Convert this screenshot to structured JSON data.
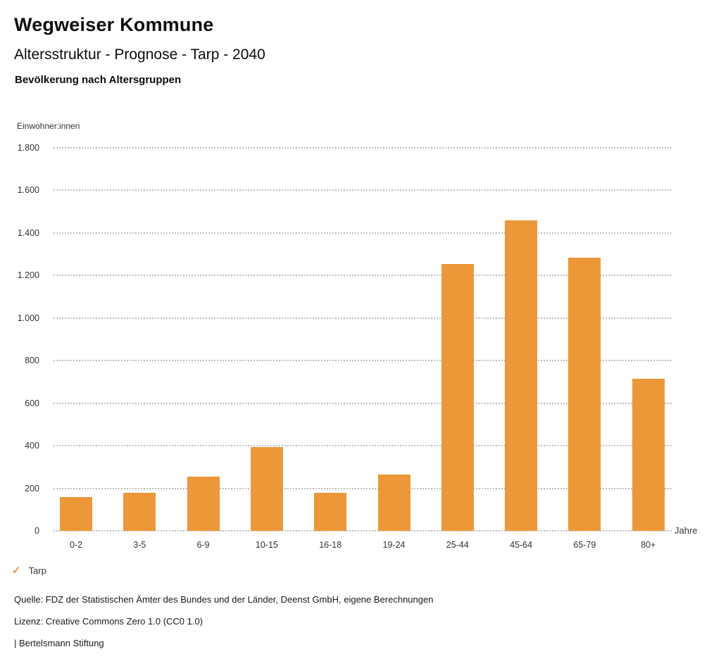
{
  "header": {
    "title": "Wegweiser Kommune",
    "subtitle": "Altersstruktur - Prognose - Tarp - 2040",
    "chart_heading": "Bevölkerung nach Altersgruppen"
  },
  "chart_data": {
    "type": "bar",
    "title": "Bevölkerung nach Altersgruppen",
    "categories": [
      "0-2",
      "3-5",
      "6-9",
      "10-15",
      "16-18",
      "19-24",
      "25-44",
      "45-64",
      "65-79",
      "80+"
    ],
    "series": [
      {
        "name": "Tarp",
        "values": [
          160,
          180,
          255,
          395,
          180,
          265,
          1255,
          1460,
          1285,
          715
        ]
      }
    ],
    "xlabel": "Jahre",
    "ylabel": "Einwohner:innen",
    "ylim": [
      0,
      1800
    ],
    "ytick_step": 200,
    "ytick_labels": [
      "0",
      "200",
      "400",
      "600",
      "800",
      "1.000",
      "1.200",
      "1.400",
      "1.600",
      "1.800"
    ],
    "grid": "horizontal-dotted",
    "bar_color": "#EC9838",
    "legend": {
      "marker": "check",
      "label": "Tarp",
      "color": "#EC9838",
      "position": "bottom-left"
    }
  },
  "footer": {
    "source": "Quelle: FDZ der Statistischen Ämter des Bundes und der Länder, Deenst GmbH, eigene Berechnungen",
    "license": "Lizenz: Creative Commons Zero 1.0 (CC0 1.0)",
    "attribution": "| Bertelsmann Stiftung"
  }
}
